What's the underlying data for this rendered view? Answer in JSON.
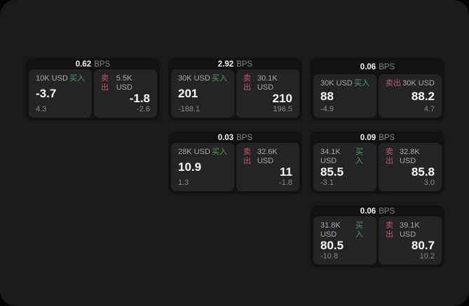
{
  "labels": {
    "bps_unit": "BPS",
    "buy_tag": "买入",
    "sell_tag": "卖出"
  },
  "colors": {
    "buy_green": "#4d9e63",
    "sell_red": "#c25964",
    "surface_bg": "#1a1a1c",
    "card_bg": "#121214",
    "panel_bg": "#242427"
  },
  "cards": [
    {
      "bps": "0.62",
      "grid": {
        "row": 1,
        "col": 1
      },
      "buy": {
        "amount": "10K USD",
        "value": "-3.7",
        "sub": "4.3"
      },
      "sell": {
        "amount": "5.5K USD",
        "value": "-1.8",
        "sub": "-2.6"
      }
    },
    {
      "bps": "2.92",
      "grid": {
        "row": 1,
        "col": 2
      },
      "buy": {
        "amount": "30K USD",
        "value": "201",
        "sub": "-188.1"
      },
      "sell": {
        "amount": "30.1K USD",
        "value": "210",
        "sub": "196.5"
      }
    },
    {
      "bps": "0.06",
      "grid": {
        "row": 1,
        "col": 3
      },
      "buy": {
        "amount": "30K USD",
        "value": "88",
        "sub": "-4.9"
      },
      "sell": {
        "amount": "30K USD",
        "value": "88.2",
        "sub": "4.7"
      }
    },
    {
      "bps": "0.03",
      "grid": {
        "row": 2,
        "col": 2
      },
      "buy": {
        "amount": "28K USD",
        "value": "10.9",
        "sub": "1.3"
      },
      "sell": {
        "amount": "32.6K USD",
        "value": "11",
        "sub": "-1.8"
      }
    },
    {
      "bps": "0.09",
      "grid": {
        "row": 2,
        "col": 3
      },
      "buy": {
        "amount": "34.1K USD",
        "value": "85.5",
        "sub": "-3.1"
      },
      "sell": {
        "amount": "32.8K USD",
        "value": "85.8",
        "sub": "3.0"
      }
    },
    {
      "bps": "0.06",
      "grid": {
        "row": 3,
        "col": 3
      },
      "buy": {
        "amount": "31.8K USD",
        "value": "80.5",
        "sub": "-10.8"
      },
      "sell": {
        "amount": "39.1K USD",
        "value": "80.7",
        "sub": "10.2"
      }
    }
  ]
}
